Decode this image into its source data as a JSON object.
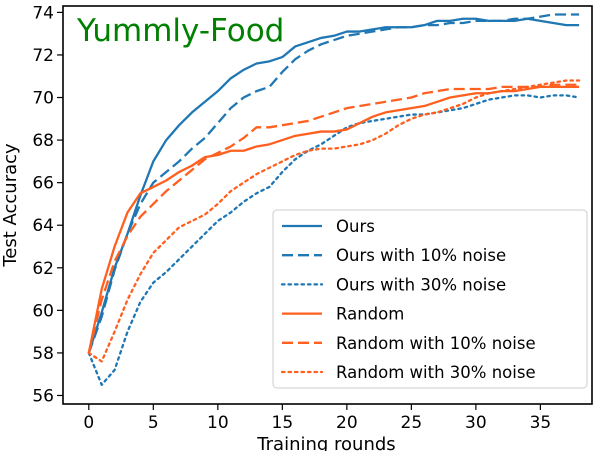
{
  "chart_data": {
    "type": "line",
    "title": "Yummly-Food",
    "title_color": "#008000",
    "xlabel": "Training rounds",
    "ylabel": "Test Accuracy",
    "xlim": [
      -2,
      39
    ],
    "ylim": [
      55.6,
      74.3
    ],
    "xticks": [
      0,
      5,
      10,
      15,
      20,
      25,
      30,
      35
    ],
    "yticks": [
      56,
      58,
      60,
      62,
      64,
      66,
      68,
      70,
      72,
      74
    ],
    "grid": false,
    "legend_position": "lower-right",
    "x": [
      0,
      1,
      2,
      3,
      4,
      5,
      6,
      7,
      8,
      9,
      10,
      11,
      12,
      13,
      14,
      15,
      16,
      17,
      18,
      19,
      20,
      21,
      22,
      23,
      24,
      25,
      26,
      27,
      28,
      29,
      30,
      31,
      32,
      33,
      34,
      35,
      36,
      37,
      38
    ],
    "series": [
      {
        "name": "Ours",
        "color": "#1f77b4",
        "dash": "solid",
        "values": [
          58.0,
          59.9,
          62.0,
          63.6,
          65.4,
          67.0,
          68.0,
          68.7,
          69.3,
          69.8,
          70.3,
          70.9,
          71.3,
          71.6,
          71.7,
          71.9,
          72.4,
          72.6,
          72.8,
          72.9,
          73.1,
          73.1,
          73.2,
          73.3,
          73.3,
          73.3,
          73.4,
          73.6,
          73.6,
          73.7,
          73.7,
          73.6,
          73.6,
          73.6,
          73.7,
          73.6,
          73.5,
          73.4,
          73.4
        ]
      },
      {
        "name": "Ours with 10% noise",
        "color": "#1f77b4",
        "dash": "dashed",
        "values": [
          58.0,
          59.7,
          61.9,
          63.6,
          65.0,
          66.0,
          66.5,
          67.0,
          67.6,
          68.1,
          68.8,
          69.5,
          70.0,
          70.3,
          70.5,
          71.2,
          71.8,
          72.2,
          72.5,
          72.7,
          72.9,
          73.0,
          73.1,
          73.2,
          73.3,
          73.3,
          73.4,
          73.4,
          73.5,
          73.5,
          73.6,
          73.6,
          73.6,
          73.7,
          73.7,
          73.8,
          73.9,
          73.9,
          73.9
        ]
      },
      {
        "name": "Ours with 30% noise",
        "color": "#1f77b4",
        "dash": "dotted",
        "values": [
          58.0,
          56.5,
          57.2,
          59.0,
          60.4,
          61.3,
          61.8,
          62.4,
          63.0,
          63.6,
          64.2,
          64.6,
          65.1,
          65.5,
          65.8,
          66.5,
          67.1,
          67.5,
          67.8,
          68.2,
          68.6,
          68.8,
          68.9,
          69.0,
          69.1,
          69.2,
          69.2,
          69.3,
          69.4,
          69.5,
          69.7,
          69.9,
          70.0,
          70.1,
          70.1,
          70.0,
          70.1,
          70.1,
          70.0
        ]
      },
      {
        "name": "Random",
        "color": "#ff5f1f",
        "dash": "solid",
        "values": [
          58.0,
          61.0,
          63.0,
          64.6,
          65.5,
          65.8,
          66.1,
          66.5,
          66.8,
          67.2,
          67.3,
          67.5,
          67.5,
          67.7,
          67.8,
          68.0,
          68.2,
          68.3,
          68.4,
          68.4,
          68.5,
          68.8,
          69.1,
          69.3,
          69.4,
          69.5,
          69.6,
          69.8,
          70.0,
          70.1,
          70.2,
          70.2,
          70.3,
          70.3,
          70.4,
          70.5,
          70.5,
          70.5,
          70.5
        ]
      },
      {
        "name": "Random with 10% noise",
        "color": "#ff5f1f",
        "dash": "dashed",
        "values": [
          58.0,
          60.5,
          62.3,
          63.5,
          64.4,
          65.0,
          65.6,
          66.1,
          66.6,
          67.1,
          67.4,
          67.7,
          68.1,
          68.6,
          68.6,
          68.7,
          68.8,
          68.9,
          69.1,
          69.3,
          69.5,
          69.6,
          69.7,
          69.8,
          69.9,
          70.0,
          70.2,
          70.3,
          70.4,
          70.4,
          70.4,
          70.4,
          70.5,
          70.5,
          70.5,
          70.5,
          70.6,
          70.6,
          70.6
        ]
      },
      {
        "name": "Random with 30% noise",
        "color": "#ff5f1f",
        "dash": "dotted",
        "values": [
          58.0,
          57.6,
          59.0,
          60.5,
          61.7,
          62.7,
          63.3,
          63.9,
          64.2,
          64.5,
          65.0,
          65.6,
          66.0,
          66.4,
          66.7,
          67.0,
          67.3,
          67.5,
          67.6,
          67.6,
          67.7,
          67.8,
          68.0,
          68.3,
          68.7,
          69.0,
          69.2,
          69.3,
          69.5,
          69.7,
          70.0,
          70.2,
          70.3,
          70.4,
          70.5,
          70.6,
          70.7,
          70.8,
          70.8
        ]
      }
    ]
  }
}
